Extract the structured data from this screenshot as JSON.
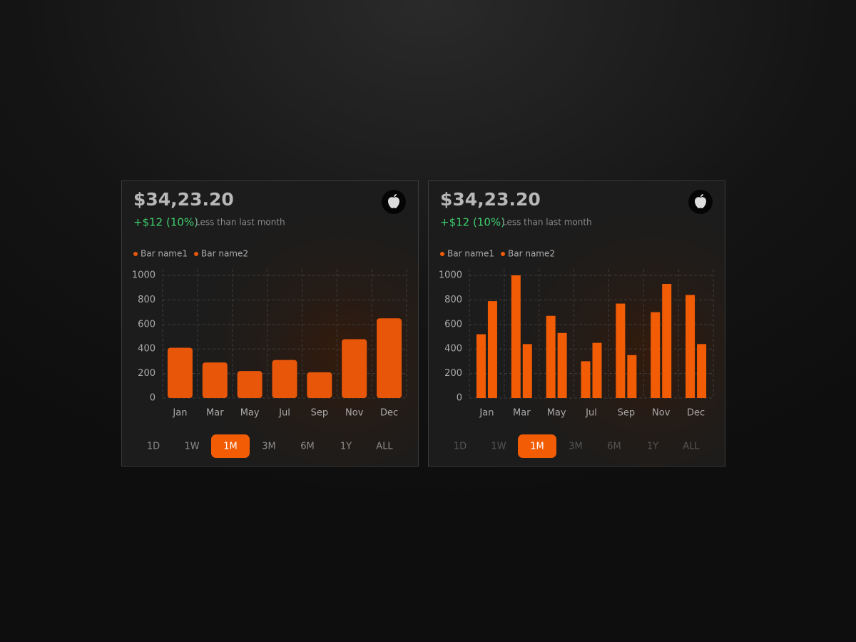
{
  "cards": [
    {
      "price": "$34,23.20",
      "change": "+$12 (10%)",
      "change_note": "Less than last month",
      "ranges": [
        "1D",
        "1W",
        "1M",
        "3M",
        "6M",
        "1Y",
        "ALL"
      ],
      "active_range": "1M"
    },
    {
      "price": "$34,23.20",
      "change": "+$12 (10%)",
      "change_note": "Less than last month",
      "ranges": [
        "1D",
        "1W",
        "1M",
        "3M",
        "6M",
        "1Y",
        "ALL"
      ],
      "active_range": "1M"
    }
  ],
  "chart_data": [
    {
      "type": "bar",
      "categories": [
        "Jan",
        "Mar",
        "May",
        "Jul",
        "Sep",
        "Nov",
        "Dec"
      ],
      "series": [
        {
          "name": "Bar name1",
          "color": "#e8560a",
          "values": [
            410,
            290,
            220,
            310,
            210,
            480,
            650
          ]
        },
        {
          "name": "Bar name2",
          "color": "#e8560a",
          "values": [
            null,
            null,
            null,
            null,
            null,
            null,
            null
          ]
        }
      ],
      "ylim": [
        0,
        1000
      ],
      "yticks": [
        0,
        200,
        400,
        600,
        800,
        1000
      ],
      "grid": true
    },
    {
      "type": "bar",
      "categories": [
        "Jan",
        "Mar",
        "May",
        "Jul",
        "Sep",
        "Nov",
        "Dec"
      ],
      "series": [
        {
          "name": "Bar name1",
          "color": "#f25c05",
          "values": [
            520,
            1000,
            670,
            300,
            770,
            700,
            840
          ]
        },
        {
          "name": "Bar name2",
          "color": "#f25c05",
          "values": [
            790,
            440,
            530,
            450,
            350,
            930,
            440
          ]
        }
      ],
      "ylim": [
        0,
        1000
      ],
      "yticks": [
        0,
        200,
        400,
        600,
        800,
        1000
      ],
      "grid": true
    }
  ]
}
